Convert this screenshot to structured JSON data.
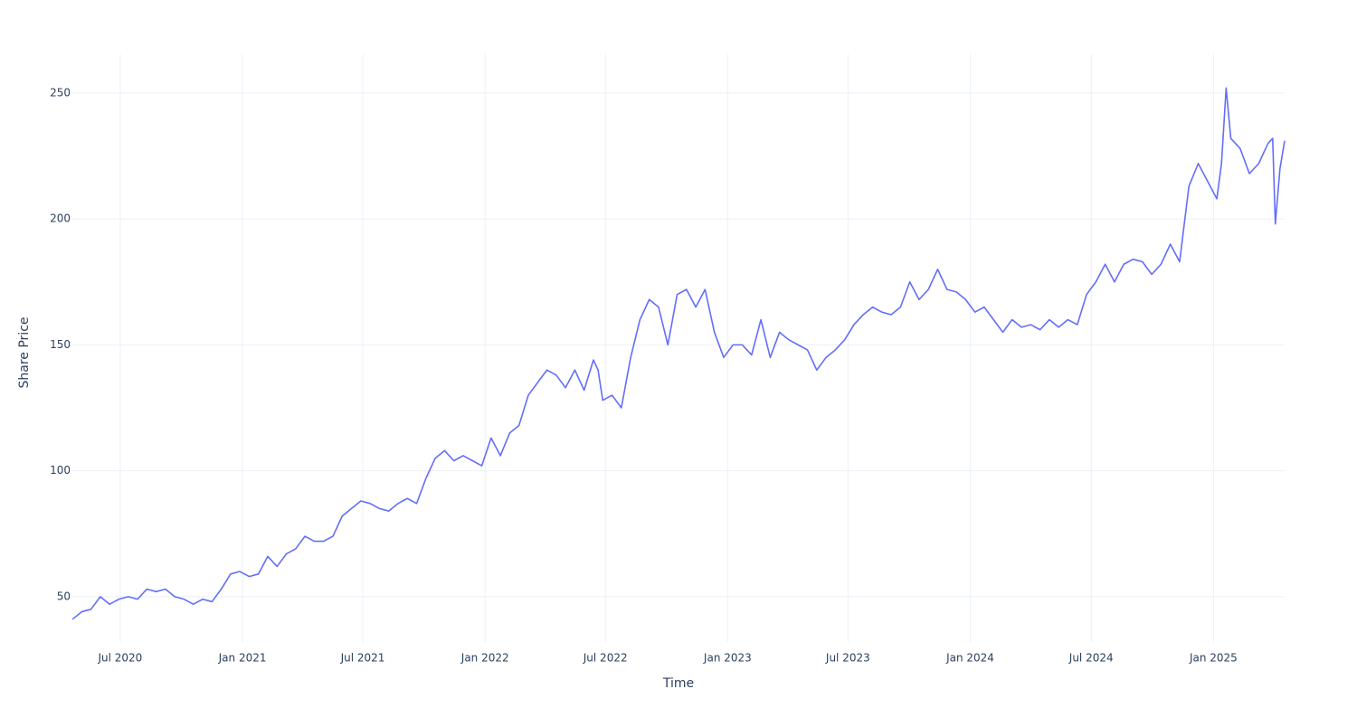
{
  "chart_data": {
    "type": "line",
    "x_label": "Time",
    "y_label": "Share Price",
    "color": "#636efa",
    "grid": true,
    "xlim": [
      "2020-04-20",
      "2025-04-18"
    ],
    "xticks": [
      {
        "value": "2020-07-01",
        "label": "Jul 2020"
      },
      {
        "value": "2021-01-01",
        "label": "Jan 2021"
      },
      {
        "value": "2021-07-01",
        "label": "Jul 2021"
      },
      {
        "value": "2022-01-01",
        "label": "Jan 2022"
      },
      {
        "value": "2022-07-01",
        "label": "Jul 2022"
      },
      {
        "value": "2023-01-01",
        "label": "Jan 2023"
      },
      {
        "value": "2023-07-01",
        "label": "Jul 2023"
      },
      {
        "value": "2024-01-01",
        "label": "Jan 2024"
      },
      {
        "value": "2024-07-01",
        "label": "Jul 2024"
      },
      {
        "value": "2025-01-01",
        "label": "Jan 2025"
      }
    ],
    "ylim": [
      32,
      265.4
    ],
    "yticks": [
      50,
      100,
      150,
      200,
      250
    ],
    "x": [
      "2020-04-20",
      "2020-05-04",
      "2020-05-18",
      "2020-06-01",
      "2020-06-15",
      "2020-06-29",
      "2020-07-13",
      "2020-07-27",
      "2020-08-10",
      "2020-08-24",
      "2020-09-07",
      "2020-09-21",
      "2020-10-05",
      "2020-10-19",
      "2020-11-02",
      "2020-11-16",
      "2020-11-30",
      "2020-12-14",
      "2020-12-28",
      "2021-01-11",
      "2021-01-25",
      "2021-02-08",
      "2021-02-22",
      "2021-03-08",
      "2021-03-22",
      "2021-04-05",
      "2021-04-19",
      "2021-05-03",
      "2021-05-17",
      "2021-05-31",
      "2021-06-14",
      "2021-06-28",
      "2021-07-12",
      "2021-07-26",
      "2021-08-09",
      "2021-08-23",
      "2021-09-06",
      "2021-09-20",
      "2021-10-04",
      "2021-10-18",
      "2021-11-01",
      "2021-11-15",
      "2021-11-29",
      "2021-12-13",
      "2021-12-27",
      "2022-01-10",
      "2022-01-24",
      "2022-02-07",
      "2022-02-21",
      "2022-03-07",
      "2022-03-21",
      "2022-04-04",
      "2022-04-18",
      "2022-05-02",
      "2022-05-16",
      "2022-05-30",
      "2022-06-13",
      "2022-06-20",
      "2022-06-27",
      "2022-07-11",
      "2022-07-25",
      "2022-08-08",
      "2022-08-22",
      "2022-09-05",
      "2022-09-19",
      "2022-10-03",
      "2022-10-17",
      "2022-10-31",
      "2022-11-14",
      "2022-11-28",
      "2022-12-12",
      "2022-12-26",
      "2023-01-09",
      "2023-01-23",
      "2023-02-06",
      "2023-02-20",
      "2023-03-06",
      "2023-03-20",
      "2023-04-03",
      "2023-04-17",
      "2023-05-01",
      "2023-05-15",
      "2023-05-29",
      "2023-06-12",
      "2023-06-26",
      "2023-07-10",
      "2023-07-24",
      "2023-08-07",
      "2023-08-21",
      "2023-09-04",
      "2023-09-18",
      "2023-10-02",
      "2023-10-16",
      "2023-10-30",
      "2023-11-13",
      "2023-11-27",
      "2023-12-11",
      "2023-12-25",
      "2024-01-08",
      "2024-01-22",
      "2024-02-05",
      "2024-02-19",
      "2024-03-04",
      "2024-03-18",
      "2024-04-01",
      "2024-04-15",
      "2024-04-29",
      "2024-05-13",
      "2024-05-27",
      "2024-06-10",
      "2024-06-24",
      "2024-07-08",
      "2024-07-22",
      "2024-08-05",
      "2024-08-19",
      "2024-09-02",
      "2024-09-16",
      "2024-09-30",
      "2024-10-14",
      "2024-10-28",
      "2024-11-11",
      "2024-11-25",
      "2024-12-09",
      "2024-12-23",
      "2025-01-06",
      "2025-01-13",
      "2025-01-20",
      "2025-01-27",
      "2025-02-10",
      "2025-02-24",
      "2025-03-10",
      "2025-03-24",
      "2025-03-31",
      "2025-04-04",
      "2025-04-11",
      "2025-04-18"
    ],
    "values": [
      41,
      44,
      45,
      50,
      47,
      49,
      50,
      49,
      53,
      52,
      53,
      50,
      49,
      47,
      49,
      48,
      53,
      59,
      60,
      58,
      59,
      66,
      62,
      67,
      69,
      74,
      72,
      72,
      74,
      82,
      85,
      88,
      87,
      85,
      84,
      87,
      89,
      87,
      97,
      105,
      108,
      104,
      106,
      104,
      102,
      113,
      106,
      115,
      118,
      130,
      135,
      140,
      138,
      133,
      140,
      132,
      144,
      140,
      128,
      130,
      125,
      145,
      160,
      168,
      165,
      150,
      170,
      172,
      165,
      172,
      155,
      145,
      150,
      150,
      146,
      160,
      145,
      155,
      152,
      150,
      148,
      140,
      145,
      148,
      152,
      158,
      162,
      165,
      163,
      162,
      165,
      175,
      168,
      172,
      180,
      172,
      171,
      168,
      163,
      165,
      160,
      155,
      160,
      157,
      158,
      156,
      160,
      157,
      160,
      158,
      170,
      175,
      182,
      175,
      182,
      184,
      183,
      178,
      182,
      190,
      183,
      213,
      222,
      215,
      208,
      222,
      252,
      232,
      228,
      218,
      222,
      230,
      232,
      198,
      220,
      231
    ]
  }
}
